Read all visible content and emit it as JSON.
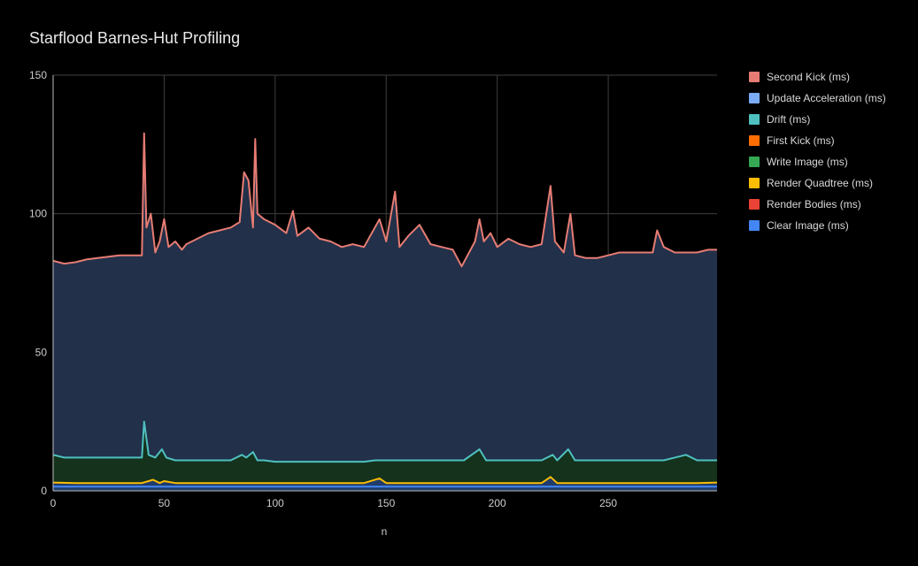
{
  "chart_data": {
    "type": "area",
    "title": "Starflood Barnes-Hut Profiling",
    "xlabel": "n",
    "ylabel": "",
    "xlim": [
      0,
      299
    ],
    "ylim": [
      0,
      150
    ],
    "xticks": [
      0,
      50,
      100,
      150,
      200,
      250
    ],
    "yticks": [
      0,
      50,
      100,
      150
    ],
    "grid": true,
    "stacked": true,
    "legend_position": "right",
    "series": [
      {
        "name": "Second Kick (ms)",
        "color": "#e67c73",
        "values": [
          [
            0,
            83
          ],
          [
            5,
            82
          ],
          [
            10,
            82.5
          ],
          [
            15,
            83.5
          ],
          [
            20,
            84
          ],
          [
            25,
            84.5
          ],
          [
            30,
            85
          ],
          [
            35,
            85
          ],
          [
            40,
            85
          ],
          [
            41,
            129
          ],
          [
            42,
            95
          ],
          [
            44,
            100
          ],
          [
            46,
            86
          ],
          [
            48,
            90
          ],
          [
            50,
            98
          ],
          [
            52,
            88
          ],
          [
            55,
            90
          ],
          [
            58,
            87
          ],
          [
            60,
            89
          ],
          [
            65,
            91
          ],
          [
            70,
            93
          ],
          [
            75,
            94
          ],
          [
            80,
            95
          ],
          [
            84,
            97
          ],
          [
            86,
            115
          ],
          [
            88,
            112
          ],
          [
            90,
            95
          ],
          [
            91,
            127
          ],
          [
            92,
            100
          ],
          [
            95,
            98
          ],
          [
            100,
            96
          ],
          [
            105,
            93
          ],
          [
            108,
            101
          ],
          [
            110,
            92
          ],
          [
            115,
            95
          ],
          [
            120,
            91
          ],
          [
            125,
            90
          ],
          [
            130,
            88
          ],
          [
            135,
            89
          ],
          [
            140,
            88
          ],
          [
            147,
            98
          ],
          [
            150,
            90
          ],
          [
            154,
            108
          ],
          [
            156,
            88
          ],
          [
            160,
            92
          ],
          [
            165,
            96
          ],
          [
            170,
            89
          ],
          [
            175,
            88
          ],
          [
            180,
            87
          ],
          [
            184,
            81
          ],
          [
            190,
            90
          ],
          [
            192,
            98
          ],
          [
            194,
            90
          ],
          [
            197,
            93
          ],
          [
            200,
            88
          ],
          [
            205,
            91
          ],
          [
            210,
            89
          ],
          [
            215,
            88
          ],
          [
            220,
            89
          ],
          [
            224,
            110
          ],
          [
            226,
            90
          ],
          [
            230,
            86
          ],
          [
            233,
            100
          ],
          [
            235,
            85
          ],
          [
            240,
            84
          ],
          [
            245,
            84
          ],
          [
            250,
            85
          ],
          [
            255,
            86
          ],
          [
            260,
            86
          ],
          [
            265,
            86
          ],
          [
            270,
            86
          ],
          [
            272,
            94
          ],
          [
            275,
            88
          ],
          [
            280,
            86
          ],
          [
            285,
            86
          ],
          [
            290,
            86
          ],
          [
            295,
            87
          ],
          [
            299,
            87
          ]
        ]
      },
      {
        "name": "Update Acceleration (ms)",
        "color": "#7baaf7",
        "values": []
      },
      {
        "name": "Drift (ms)",
        "color": "#4ec0c0",
        "values": [
          [
            0,
            13
          ],
          [
            5,
            12
          ],
          [
            10,
            12
          ],
          [
            15,
            12
          ],
          [
            20,
            12
          ],
          [
            25,
            12
          ],
          [
            30,
            12
          ],
          [
            35,
            12
          ],
          [
            40,
            12
          ],
          [
            41,
            25
          ],
          [
            43,
            13
          ],
          [
            46,
            12
          ],
          [
            49,
            15
          ],
          [
            51,
            12
          ],
          [
            55,
            11
          ],
          [
            60,
            11
          ],
          [
            65,
            11
          ],
          [
            70,
            11
          ],
          [
            75,
            11
          ],
          [
            80,
            11
          ],
          [
            85,
            13
          ],
          [
            87,
            12
          ],
          [
            90,
            14
          ],
          [
            92,
            11
          ],
          [
            95,
            11
          ],
          [
            100,
            10.5
          ],
          [
            105,
            10.5
          ],
          [
            110,
            10.5
          ],
          [
            115,
            10.5
          ],
          [
            120,
            10.5
          ],
          [
            125,
            10.5
          ],
          [
            130,
            10.5
          ],
          [
            135,
            10.5
          ],
          [
            140,
            10.5
          ],
          [
            145,
            11
          ],
          [
            150,
            11
          ],
          [
            155,
            11
          ],
          [
            160,
            11
          ],
          [
            165,
            11
          ],
          [
            170,
            11
          ],
          [
            175,
            11
          ],
          [
            180,
            11
          ],
          [
            185,
            11
          ],
          [
            192,
            15
          ],
          [
            195,
            11
          ],
          [
            200,
            11
          ],
          [
            205,
            11
          ],
          [
            210,
            11
          ],
          [
            215,
            11
          ],
          [
            220,
            11
          ],
          [
            225,
            13
          ],
          [
            227,
            11
          ],
          [
            232,
            15
          ],
          [
            235,
            11
          ],
          [
            240,
            11
          ],
          [
            245,
            11
          ],
          [
            250,
            11
          ],
          [
            255,
            11
          ],
          [
            260,
            11
          ],
          [
            265,
            11
          ],
          [
            270,
            11
          ],
          [
            275,
            11
          ],
          [
            285,
            13
          ],
          [
            290,
            11
          ],
          [
            295,
            11
          ],
          [
            299,
            11
          ]
        ]
      },
      {
        "name": "First Kick (ms)",
        "color": "#ff6d01",
        "values": []
      },
      {
        "name": "Write Image (ms)",
        "color": "#34a853",
        "values": []
      },
      {
        "name": "Render Quadtree (ms)",
        "color": "#fbbc04",
        "values": [
          [
            0,
            3
          ],
          [
            10,
            2.8
          ],
          [
            20,
            2.8
          ],
          [
            30,
            2.8
          ],
          [
            40,
            2.8
          ],
          [
            45,
            4
          ],
          [
            48,
            2.8
          ],
          [
            50,
            3.5
          ],
          [
            55,
            2.8
          ],
          [
            60,
            2.8
          ],
          [
            70,
            2.8
          ],
          [
            80,
            2.8
          ],
          [
            90,
            2.8
          ],
          [
            100,
            2.8
          ],
          [
            110,
            2.8
          ],
          [
            120,
            2.8
          ],
          [
            130,
            2.8
          ],
          [
            140,
            2.8
          ],
          [
            147,
            4.5
          ],
          [
            150,
            2.8
          ],
          [
            160,
            2.8
          ],
          [
            170,
            2.8
          ],
          [
            180,
            2.8
          ],
          [
            190,
            2.8
          ],
          [
            200,
            2.8
          ],
          [
            210,
            2.8
          ],
          [
            220,
            2.8
          ],
          [
            224,
            5
          ],
          [
            227,
            2.8
          ],
          [
            230,
            2.8
          ],
          [
            240,
            2.8
          ],
          [
            250,
            2.8
          ],
          [
            260,
            2.8
          ],
          [
            270,
            2.8
          ],
          [
            280,
            2.8
          ],
          [
            290,
            2.8
          ],
          [
            299,
            3
          ]
        ]
      },
      {
        "name": "Render Bodies (ms)",
        "color": "#ea4335",
        "values": []
      },
      {
        "name": "Clear Image (ms)",
        "color": "#4285f4",
        "values": [
          [
            0,
            1.5
          ],
          [
            100,
            1.5
          ],
          [
            200,
            1.5
          ],
          [
            299,
            1.5
          ]
        ]
      }
    ],
    "fill_colors": {
      "Second Kick (ms)": "#223049",
      "Drift (ms)": "#14321c",
      "Render Quadtree (ms)": "#203c6a"
    }
  }
}
